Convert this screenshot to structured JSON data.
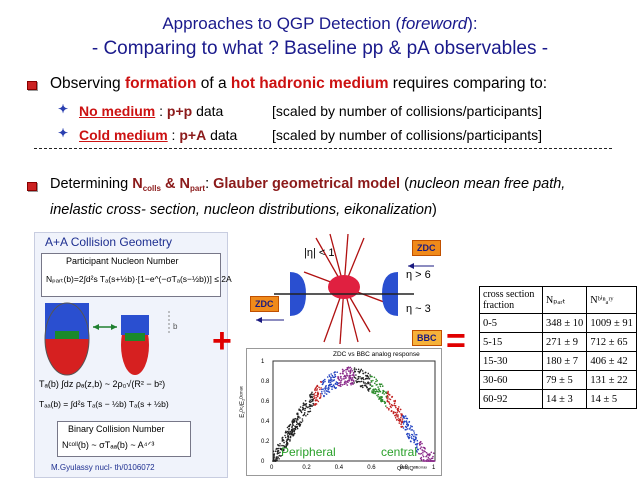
{
  "title": {
    "line1_prefix": "Approaches to QGP Detection (",
    "line1_italic": "foreword",
    "line1_suffix": "):",
    "line2": "- Comparing to what ? Baseline pp & pA observables -"
  },
  "bullet1": {
    "p1": "Observing ",
    "p2": "formation",
    "p3": " of a ",
    "p4": "hot hadronic medium",
    "p5": " requires comparing to:",
    "sub1_a": "No medium",
    "sub1_b": " : ",
    "sub1_c": "p+p",
    "sub1_d": " data",
    "sub1_e": "[scaled by number of collisions/participants]",
    "sub2_a": "Cold medium",
    "sub2_b": " : ",
    "sub2_c": "p+A",
    "sub2_d": " data",
    "sub2_e": "[scaled by number of collisions/participants]"
  },
  "bullet2": {
    "p1": "Determining ",
    "n1": "N",
    "n1_sub": "colls",
    "amp": " & ",
    "n2": "N",
    "n2_sub": "part",
    "p2": ": ",
    "p3": "Glauber geometrical model",
    "p4": " (",
    "p5": "nucleon mean free path,",
    "line2": "inelastic cross- section, nucleon distributions, eikonalization",
    "line2_end": ")"
  },
  "panel_left": {
    "header": "A+A Collision Geometry",
    "box1_title": "Participant Nucleon Number",
    "box1_formula": "Nₚₐᵣₜ(b)=2∫d²s Tₐ(s+½b)·[1−e^(−σTₐ(s−½b))] ≤ 2A",
    "formula2": "Tₐ(b) ∫dz ρₐ(z,b) ~ 2ρ₀√(R² − b²)",
    "formula3": "Tₐₐ(b) = ∫d²s Tₐ(s − ½b) Tₐ(s + ½b)",
    "box2_title": "Binary Collision Number",
    "box2_formula": "Nᶜᵒˡˡ(b) ~ σTₐₐ(b) ~ A⁴ᐟ³",
    "credit": "M.Gyulassy  nucl- th/0106072",
    "bracket_label": "b"
  },
  "detector": {
    "eta1": "|η| < 1",
    "zdc_top": "ZDC",
    "eta2": "η > 6",
    "zdc_left": "ZDC",
    "eta3": "η ~ 3",
    "bbc": "BBC"
  },
  "scatter": {
    "title": "ZDC vs BBC analog response",
    "ylabel": "E₂ᴰᶜ/E₂ᴰᶜᵐᵃˣ",
    "xlabel": "Qᴮᴮᶜ/Qᴮᴮᶜᵐᵃˣ",
    "peripheral": "Peripheral",
    "central": "central",
    "xticks": [
      "0",
      "0.2",
      "0.4",
      "0.6",
      "0.8",
      "1"
    ],
    "yticks": [
      "0",
      "0.2",
      "0.4",
      "0.6",
      "0.8",
      "1"
    ]
  },
  "operators": {
    "plus": "+",
    "equals": "="
  },
  "table": {
    "headers": [
      "cross section fraction",
      "Nₚₐᵣₜ",
      "Nᵇⁱⁿₐʳʸ"
    ],
    "rows": [
      [
        "0-5",
        "348 ± 10",
        "1009 ± 91"
      ],
      [
        "5-15",
        "271 ± 9",
        "712 ± 65"
      ],
      [
        "15-30",
        "180 ± 7",
        "406 ± 42"
      ],
      [
        "30-60",
        "79 ± 5",
        "131 ± 22"
      ],
      [
        "60-92",
        "14 ± 3",
        "14 ± 5"
      ]
    ]
  },
  "colors": {
    "title": "#1a1a8c",
    "highlight": "#cc1111",
    "bullet": "#cc2222",
    "accent": "#f08a1a"
  }
}
